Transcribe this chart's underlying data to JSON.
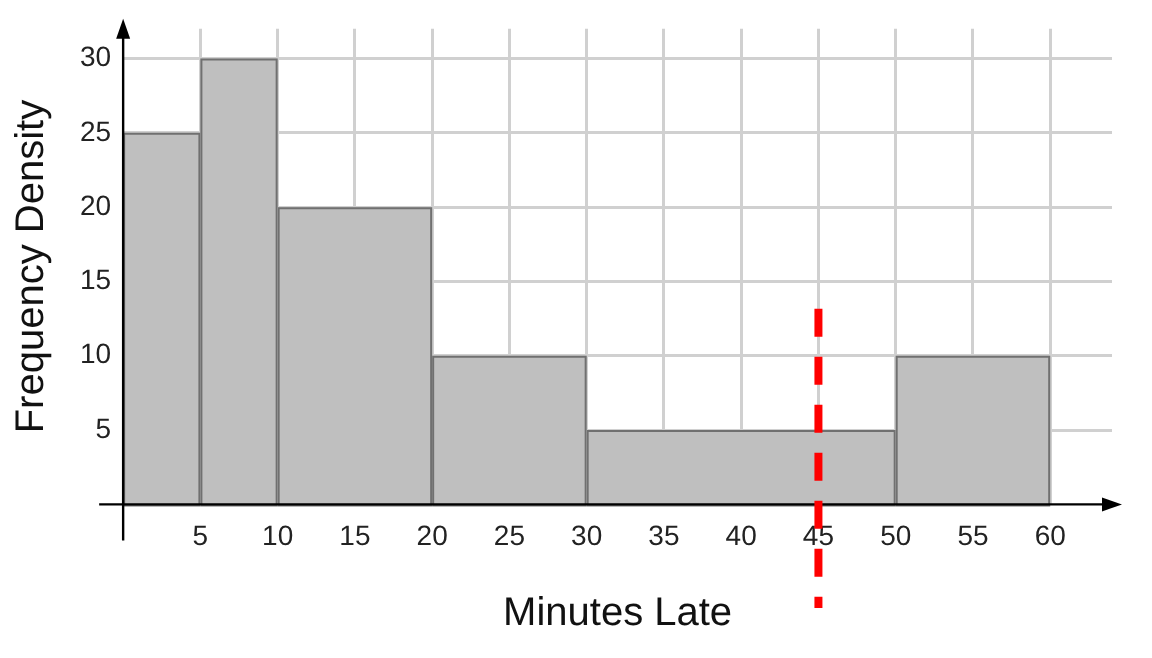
{
  "chart_data": {
    "type": "histogram",
    "xlabel": "Minutes Late",
    "ylabel": "Frequency Density",
    "bins": [
      0,
      5,
      10,
      20,
      30,
      50,
      60
    ],
    "values": [
      25,
      30,
      20,
      10,
      5,
      10
    ],
    "color": "#bfbfbf",
    "xlim": [
      0,
      64
    ],
    "ylim": [
      0,
      32
    ],
    "xticks": [
      5,
      10,
      15,
      20,
      25,
      30,
      35,
      40,
      45,
      50,
      55,
      60
    ],
    "yticks": [
      5,
      10,
      15,
      20,
      25,
      30
    ],
    "grid": true,
    "ref_lines": [
      {
        "axis": "x",
        "value": 45,
        "color": "#ff0000",
        "line_style": "dashed"
      }
    ]
  }
}
